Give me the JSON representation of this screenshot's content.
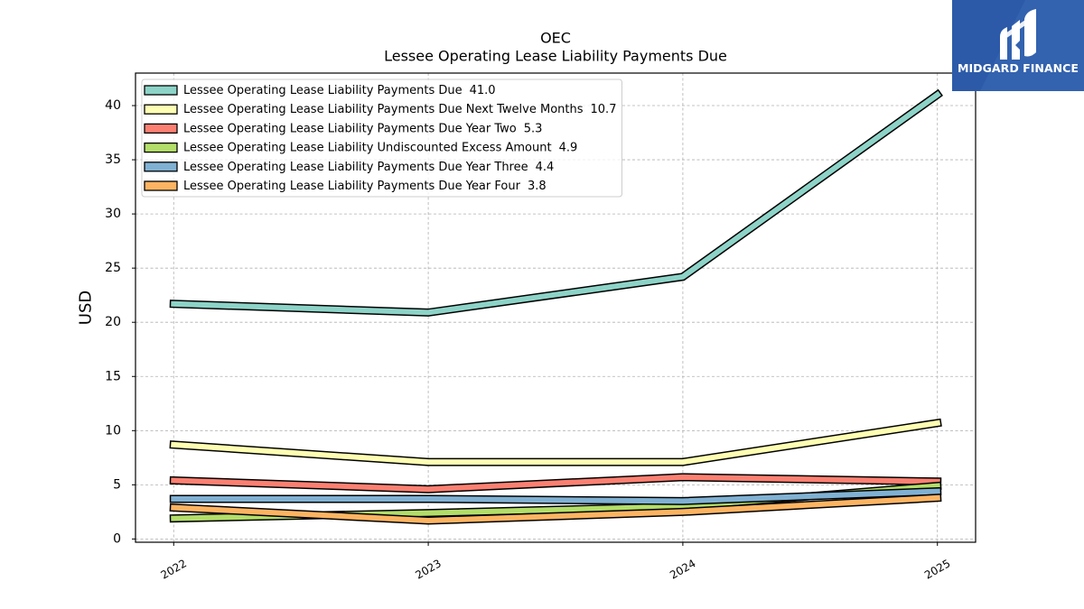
{
  "logo": {
    "text": "MIDGARD FINANCE",
    "background_color": "#2c5aa8",
    "icon": "midgard-logo-mark-icon"
  },
  "chart_data": {
    "type": "line",
    "title": "OEC",
    "subtitle": "Lessee Operating Lease Liability Payments Due",
    "xlabel": "",
    "ylabel": "USD",
    "categories": [
      "2022",
      "2023",
      "2024",
      "2025"
    ],
    "ylim": [
      -0.3,
      43.0
    ],
    "yticks": [
      0,
      5,
      10,
      15,
      20,
      25,
      30,
      35,
      40
    ],
    "grid": true,
    "legend_position": "top-left",
    "series": [
      {
        "name": "Lessee Operating Lease Liability Payments Due",
        "legend_value": "41.0",
        "color": "#8dd3c7",
        "values": [
          21.7,
          20.9,
          24.2,
          41.0
        ]
      },
      {
        "name": "Lessee Operating Lease Liability Payments Due Next Twelve Months",
        "legend_value": "10.7",
        "color": "#ffffb3",
        "values": [
          8.7,
          7.1,
          7.1,
          10.7
        ]
      },
      {
        "name": "Lessee Operating Lease Liability Payments Due Year Two",
        "legend_value": "5.3",
        "color": "#fb8072",
        "values": [
          5.4,
          4.6,
          5.7,
          5.3
        ]
      },
      {
        "name": "Lessee Operating Lease Liability Undiscounted Excess Amount",
        "legend_value": "4.9",
        "color": "#b3de69",
        "values": [
          1.9,
          2.4,
          3.0,
          4.9
        ]
      },
      {
        "name": "Lessee Operating Lease Liability Payments Due Year Three",
        "legend_value": "4.4",
        "color": "#80b1d3",
        "values": [
          3.7,
          3.7,
          3.5,
          4.4
        ]
      },
      {
        "name": "Lessee Operating Lease Liability Payments Due Year Four",
        "legend_value": "3.8",
        "color": "#fdb462",
        "values": [
          2.9,
          1.7,
          2.5,
          3.8
        ]
      }
    ]
  }
}
